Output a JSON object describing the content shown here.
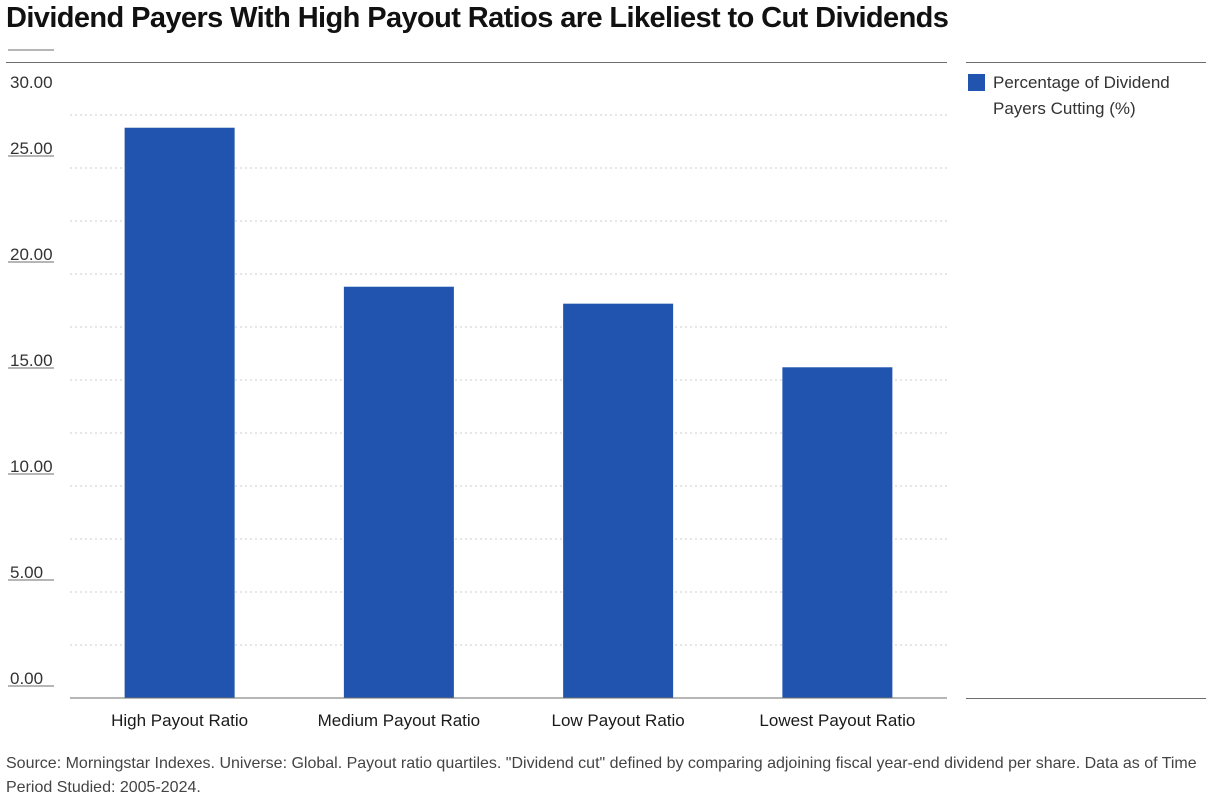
{
  "title": "Dividend Payers With High Payout Ratios are Likeliest to Cut Dividends",
  "legend": {
    "label": "Percentage of Dividend Payers Cutting (%)"
  },
  "footnote": "Source: Morningstar Indexes. Universe: Global. Payout ratio quartiles. \"Dividend cut\" defined by comparing adjoining fiscal year-end dividend per share. Data as of Time Period Studied: 2005-2024.",
  "chart_data": {
    "type": "bar",
    "title": "Dividend Payers With High Payout Ratios are Likeliest to Cut Dividends",
    "xlabel": "",
    "ylabel": "",
    "categories": [
      "High Payout Ratio",
      "Medium Payout Ratio",
      "Low Payout Ratio",
      "Lowest Payout Ratio"
    ],
    "series": [
      {
        "name": "Percentage of Dividend Payers Cutting (%)",
        "values": [
          26.9,
          19.4,
          18.6,
          15.6
        ]
      }
    ],
    "ylim": [
      0,
      30
    ],
    "yticks": [
      "0.00",
      "5.00",
      "10.00",
      "15.00",
      "20.00",
      "25.00",
      "30.00"
    ],
    "grid": true,
    "legend_position": "right",
    "bar_color": "#2054AF",
    "grid_color": "#cccccc"
  }
}
